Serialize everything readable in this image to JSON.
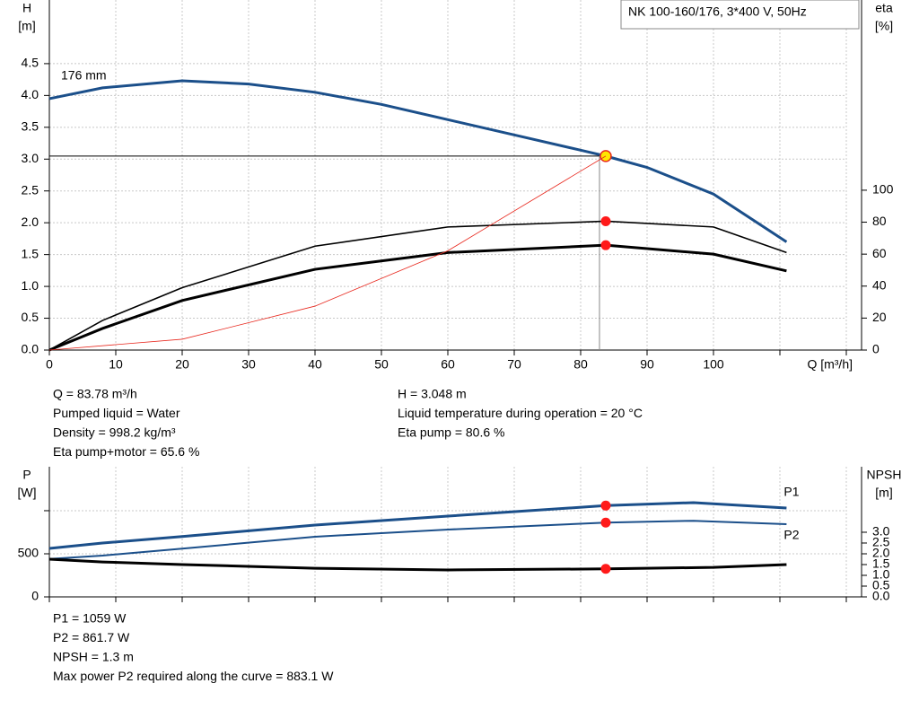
{
  "chart_data": [
    {
      "type": "line",
      "legend_box": "NK 100-160/176, 3*400 V, 50Hz",
      "y_title": "H",
      "y_unit": "[m]",
      "y2_title": "eta",
      "y2_unit": "[%]",
      "x_label": "Q [m³/h]",
      "xlim": [
        0,
        120
      ],
      "xticks": [
        0,
        10,
        20,
        30,
        40,
        50,
        60,
        70,
        80,
        90,
        100,
        {
          "value": 110,
          "label": null
        },
        {
          "value": 120,
          "label": null
        }
      ],
      "ylim": [
        0,
        5.5
      ],
      "yticks": [
        {
          "value": 0,
          "label": "0.0"
        },
        0.5,
        {
          "value": 1,
          "label": "1.0"
        },
        1.5,
        {
          "value": 2,
          "label": "2.0"
        },
        2.5,
        {
          "value": 3,
          "label": "3.0"
        },
        3.5,
        {
          "value": 4,
          "label": "4.0"
        },
        4.5
      ],
      "y2lim": [
        0,
        219
      ],
      "y2ticks": [
        0,
        20,
        40,
        60,
        80,
        100
      ],
      "grid": true,
      "duty_q": 83.78,
      "series": [
        {
          "name": "176 mm",
          "color": "#1b4f8a",
          "x": [
            0,
            8,
            20,
            30,
            40,
            50,
            60,
            70,
            80,
            83.78,
            90,
            100,
            111
          ],
          "values": [
            3.95,
            4.12,
            4.23,
            4.18,
            4.05,
            3.86,
            3.62,
            3.38,
            3.14,
            3.048,
            2.87,
            2.45,
            1.7
          ]
        },
        {
          "color": "#000000",
          "axis": "y2",
          "x": [
            0,
            8,
            20,
            40,
            60,
            83.78,
            100,
            111
          ],
          "values": [
            0,
            18.5,
            39,
            65,
            77,
            80.6,
            77,
            61
          ]
        },
        {
          "color": "#000000",
          "axis": "y2",
          "x": [
            0,
            8,
            20,
            40,
            60,
            83.78,
            100,
            111
          ],
          "values": [
            0,
            13.5,
            31,
            50.5,
            61,
            65.6,
            60,
            49.5
          ]
        },
        {
          "color": "#e8281e",
          "x": [
            0,
            20,
            40,
            60,
            83.78
          ],
          "values": [
            0,
            0.17,
            0.69,
            1.56,
            3.048
          ]
        }
      ],
      "info_left": [
        "Q = 83.78 m³/h",
        "Pumped liquid = Water",
        "Density = 998.2 kg/m³",
        "Eta pump+motor = 65.6 %"
      ],
      "info_right": [
        "H = 3.048 m",
        "Liquid temperature during operation = 20 °C",
        "Eta pump = 80.6 %"
      ]
    },
    {
      "type": "line",
      "y_title": "P",
      "y_unit": "[W]",
      "y2_title": "NPSH",
      "y2_unit": "[m]",
      "xlim": [
        0,
        120
      ],
      "xticks": [
        0,
        10,
        20,
        30,
        40,
        50,
        60,
        70,
        80,
        90,
        100,
        110,
        120
      ],
      "show_xtick_labels": false,
      "ylim": [
        0,
        1510
      ],
      "yticks": [
        0,
        500,
        {
          "value": 1000,
          "label": null
        }
      ],
      "y2lim": [
        0,
        6.04
      ],
      "y2ticks": [
        {
          "value": 0,
          "label": "0.0"
        },
        0.5,
        {
          "value": 1,
          "label": "1.0"
        },
        1.5,
        {
          "value": 2,
          "label": "2.0"
        },
        2.5,
        {
          "value": 3,
          "label": "3.0"
        }
      ],
      "grid": true,
      "duty_q": 83.78,
      "series": [
        {
          "name": "P1",
          "color": "#1b4f8a",
          "x": [
            0,
            8,
            20,
            40,
            60,
            83.78,
            97,
            111
          ],
          "values": [
            562,
            625,
            700,
            833,
            937,
            1059,
            1094,
            1031
          ]
        },
        {
          "name": "P2",
          "color": "#1b4f8a",
          "x": [
            0,
            8,
            20,
            40,
            60,
            83.78,
            97,
            111
          ],
          "values": [
            440,
            479,
            560,
            698,
            781,
            861.7,
            883,
            844
          ]
        },
        {
          "color": "#000000",
          "axis": "y2",
          "x": [
            0,
            8,
            20,
            40,
            60,
            83.78,
            100,
            111
          ],
          "values": [
            1.75,
            1.62,
            1.5,
            1.33,
            1.25,
            1.3,
            1.37,
            1.5
          ]
        }
      ],
      "info": [
        "P1 = 1059 W",
        "P2 = 861.7 W",
        "NPSH = 1.3 m",
        "Max power P2 required along the curve = 883.1 W"
      ]
    }
  ]
}
